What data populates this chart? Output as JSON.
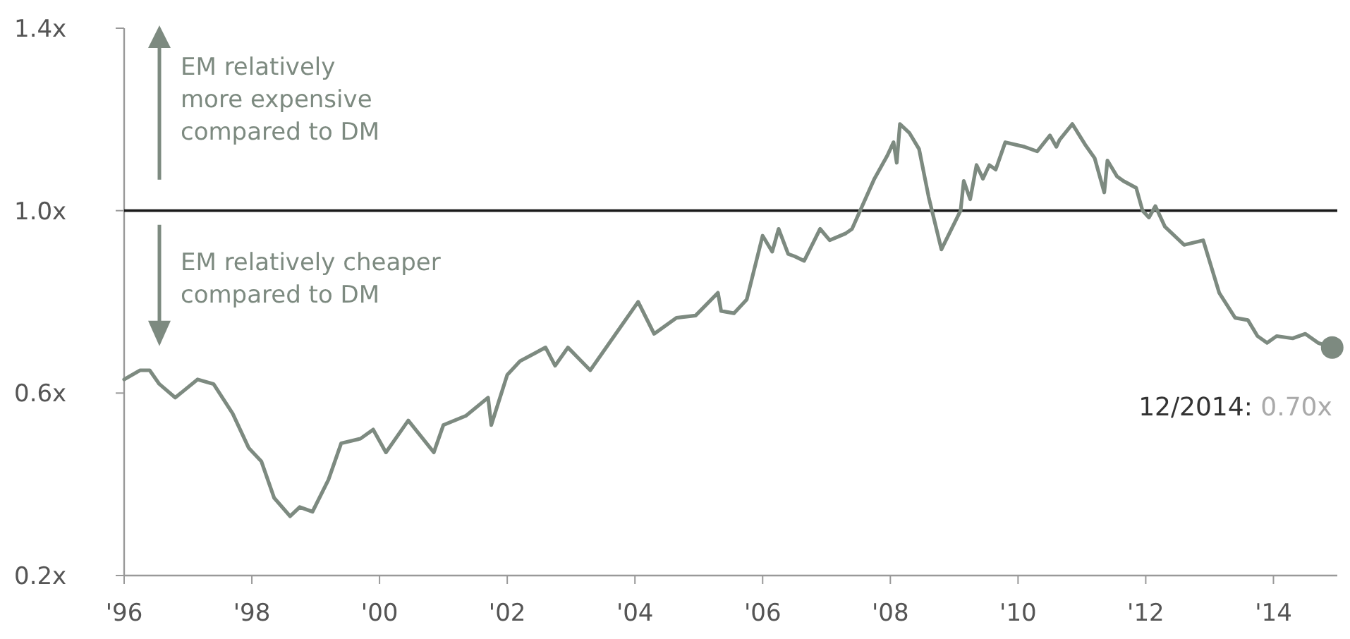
{
  "chart_data": {
    "type": "line",
    "xlim": [
      1996,
      2015
    ],
    "ylim": [
      0.2,
      1.4
    ],
    "xticks": [
      {
        "value": 1996,
        "label": "'96"
      },
      {
        "value": 1998,
        "label": "'98"
      },
      {
        "value": 2000,
        "label": "'00"
      },
      {
        "value": 2002,
        "label": "'02"
      },
      {
        "value": 2004,
        "label": "'04"
      },
      {
        "value": 2006,
        "label": "'06"
      },
      {
        "value": 2008,
        "label": "'08"
      },
      {
        "value": 2010,
        "label": "'10"
      },
      {
        "value": 2012,
        "label": "'12"
      },
      {
        "value": 2014,
        "label": "'14"
      }
    ],
    "yticks": [
      {
        "value": 0.2,
        "label": "0.2x"
      },
      {
        "value": 0.6,
        "label": "0.6x"
      },
      {
        "value": 1.0,
        "label": "1.0x"
      },
      {
        "value": 1.4,
        "label": "1.4x"
      }
    ],
    "grid": false,
    "line_style": "solid",
    "ref_lines": [
      {
        "axis": "y",
        "value": 1.0,
        "color": "#1a1a1a"
      }
    ],
    "annotations": [
      "EM relatively more expensive compared to DM",
      "EM relatively cheaper compared to DM",
      {
        "text": "12/2014: 0.70x",
        "x": 2014.92,
        "y": 0.7
      }
    ],
    "series": [
      {
        "color": "#7d8a80",
        "x": [
          1996.0,
          1996.25,
          1996.4,
          1996.55,
          1996.8,
          1997.15,
          1997.4,
          1997.7,
          1997.95,
          1998.15,
          1998.35,
          1998.6,
          1998.75,
          1998.95,
          1999.2,
          1999.4,
          1999.7,
          1999.9,
          2000.1,
          2000.45,
          2000.85,
          2001.0,
          2001.35,
          2001.7,
          2001.75,
          2002.0,
          2002.2,
          2002.6,
          2002.75,
          2002.95,
          2003.3,
          2003.7,
          2004.05,
          2004.3,
          2004.65,
          2004.95,
          2005.3,
          2005.35,
          2005.55,
          2005.75,
          2006.0,
          2006.15,
          2006.25,
          2006.4,
          2006.5,
          2006.65,
          2006.9,
          2007.05,
          2007.3,
          2007.4,
          2007.75,
          2007.95,
          2008.05,
          2008.1,
          2008.15,
          2008.3,
          2008.45,
          2008.6,
          2008.8,
          2009.1,
          2009.15,
          2009.25,
          2009.35,
          2009.45,
          2009.55,
          2009.65,
          2009.8,
          2010.1,
          2010.3,
          2010.5,
          2010.6,
          2010.65,
          2010.85,
          2011.05,
          2011.2,
          2011.35,
          2011.4,
          2011.55,
          2011.65,
          2011.85,
          2011.95,
          2012.05,
          2012.15,
          2012.3,
          2012.6,
          2012.9,
          2013.15,
          2013.4,
          2013.6,
          2013.75,
          2013.9,
          2014.05,
          2014.3,
          2014.5,
          2014.7,
          2014.92
        ],
        "values": [
          0.63,
          0.65,
          0.65,
          0.62,
          0.59,
          0.63,
          0.62,
          0.555,
          0.48,
          0.45,
          0.37,
          0.33,
          0.35,
          0.34,
          0.41,
          0.49,
          0.5,
          0.52,
          0.47,
          0.54,
          0.47,
          0.53,
          0.55,
          0.59,
          0.53,
          0.64,
          0.67,
          0.7,
          0.66,
          0.7,
          0.65,
          0.73,
          0.8,
          0.73,
          0.765,
          0.77,
          0.82,
          0.78,
          0.775,
          0.805,
          0.945,
          0.91,
          0.96,
          0.905,
          0.9,
          0.89,
          0.96,
          0.935,
          0.95,
          0.96,
          1.07,
          1.12,
          1.15,
          1.105,
          1.19,
          1.17,
          1.135,
          1.03,
          0.915,
          1.0,
          1.065,
          1.025,
          1.1,
          1.07,
          1.1,
          1.09,
          1.15,
          1.14,
          1.13,
          1.165,
          1.14,
          1.155,
          1.19,
          1.145,
          1.115,
          1.04,
          1.11,
          1.075,
          1.065,
          1.05,
          1.0,
          0.985,
          1.01,
          0.965,
          0.925,
          0.935,
          0.82,
          0.765,
          0.76,
          0.725,
          0.71,
          0.725,
          0.72,
          0.73,
          0.71,
          0.7
        ]
      },
      {
        "type": "scatter",
        "color": "#7d8a80",
        "marker": "circle",
        "x": [
          2014.92
        ],
        "values": [
          0.7
        ]
      }
    ]
  }
}
